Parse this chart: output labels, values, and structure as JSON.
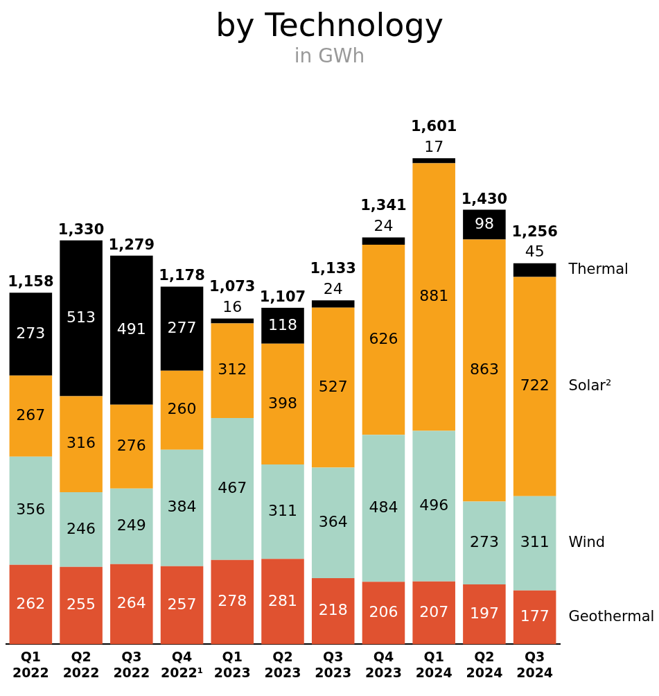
{
  "chart_data": {
    "type": "bar",
    "title": "by Technology",
    "subtitle": "in GWh",
    "stacked": true,
    "data_labels": true,
    "categories": [
      "Q1 2022",
      "Q2 2022",
      "Q3 2022",
      "Q4 2022¹",
      "Q1 2023",
      "Q2 2023",
      "Q3 2023",
      "Q4 2023",
      "Q1 2024",
      "Q2 2024",
      "Q3 2024"
    ],
    "series": [
      {
        "name": "Geothermal",
        "color": "#e05230",
        "values": [
          262,
          255,
          264,
          257,
          278,
          281,
          218,
          206,
          207,
          197,
          177
        ]
      },
      {
        "name": "Wind",
        "color": "#a8d5c5",
        "values": [
          356,
          246,
          249,
          384,
          467,
          311,
          364,
          484,
          496,
          273,
          311
        ]
      },
      {
        "name": "Solar²",
        "color": "#f7a21b",
        "values": [
          267,
          316,
          276,
          260,
          312,
          398,
          527,
          626,
          881,
          863,
          722
        ]
      },
      {
        "name": "Thermal",
        "color": "#000000",
        "values": [
          273,
          513,
          491,
          277,
          16,
          118,
          24,
          24,
          17,
          98,
          45
        ]
      }
    ],
    "totals": [
      "1,158",
      "1,330",
      "1,279",
      "1,178",
      "1,073",
      "1,107",
      "1,133",
      "1,341",
      "1,601",
      "1,430",
      "1,256"
    ],
    "grid": false
  }
}
